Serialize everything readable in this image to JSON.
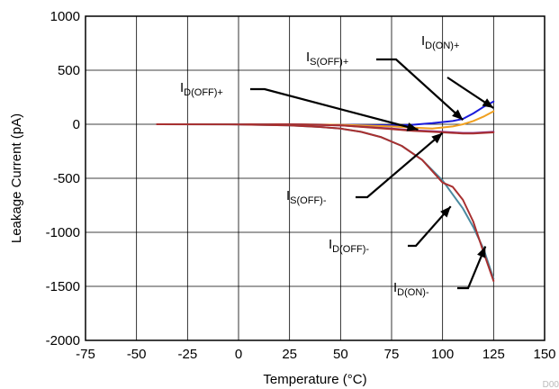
{
  "chart_data": {
    "type": "line",
    "title": "",
    "xlabel": "Temperature (°C)",
    "ylabel": "Leakage Current (pA)",
    "xlim": [
      -75,
      150
    ],
    "ylim": [
      -2000,
      1000
    ],
    "xticks": [
      -75,
      -50,
      -25,
      0,
      25,
      50,
      75,
      100,
      125,
      150
    ],
    "yticks": [
      1000,
      500,
      0,
      -500,
      -1000,
      -1500,
      -2000
    ],
    "grid": true,
    "legend": "none",
    "watermark": "D00",
    "series": [
      {
        "color": "#1a1adb",
        "x": [
          -40,
          0,
          25,
          50,
          75,
          85,
          95,
          105,
          110,
          115,
          120,
          125
        ],
        "y": [
          0,
          0,
          0,
          -5,
          -10,
          -5,
          10,
          30,
          50,
          100,
          160,
          210
        ]
      },
      {
        "color": "#f0a020",
        "x": [
          -40,
          0,
          25,
          50,
          75,
          85,
          95,
          105,
          110,
          115,
          120,
          125
        ],
        "y": [
          0,
          0,
          0,
          -5,
          -20,
          -30,
          -40,
          -20,
          0,
          30,
          70,
          120
        ]
      },
      {
        "color": "#8a2a8a",
        "x": [
          -40,
          0,
          25,
          50,
          75,
          85,
          95,
          105,
          110,
          115,
          120,
          125
        ],
        "y": [
          0,
          0,
          0,
          -10,
          -40,
          -55,
          -65,
          -75,
          -80,
          -80,
          -75,
          -70
        ]
      },
      {
        "color": "#a83030",
        "x": [
          -40,
          0,
          25,
          50,
          75,
          85,
          95,
          105,
          110,
          115,
          120,
          125
        ],
        "y": [
          0,
          0,
          0,
          -10,
          -45,
          -60,
          -70,
          -80,
          -85,
          -85,
          -80,
          -75
        ]
      },
      {
        "color": "#4a8aa0",
        "x": [
          -40,
          0,
          25,
          40,
          50,
          60,
          70,
          80,
          90,
          100,
          110,
          115,
          120,
          125
        ],
        "y": [
          0,
          -2,
          -10,
          -25,
          -40,
          -70,
          -120,
          -200,
          -330,
          -520,
          -780,
          -950,
          -1150,
          -1430
        ]
      },
      {
        "color": "#a83030",
        "x": [
          -40,
          0,
          25,
          40,
          50,
          60,
          70,
          80,
          90,
          100,
          105,
          110,
          115,
          120,
          125
        ],
        "y": [
          0,
          -2,
          -10,
          -25,
          -40,
          -70,
          -120,
          -200,
          -330,
          -540,
          -580,
          -700,
          -900,
          -1180,
          -1450
        ]
      }
    ],
    "annotations": [
      {
        "label_main": "I",
        "label_sub": "D(ON)+",
        "target": [
          125,
          150
        ]
      },
      {
        "label_main": "I",
        "label_sub": "S(OFF)+",
        "target": [
          110,
          40
        ]
      },
      {
        "label_main": "I",
        "label_sub": "D(OFF)+",
        "target": [
          88,
          -50
        ]
      },
      {
        "label_main": "I",
        "label_sub": "S(OFF)-",
        "target": [
          100,
          -80
        ]
      },
      {
        "label_main": "I",
        "label_sub": "D(OFF)-",
        "target": [
          104,
          -760
        ]
      },
      {
        "label_main": "I",
        "label_sub": "D(ON)-",
        "target": [
          121,
          -1130
        ]
      }
    ]
  }
}
